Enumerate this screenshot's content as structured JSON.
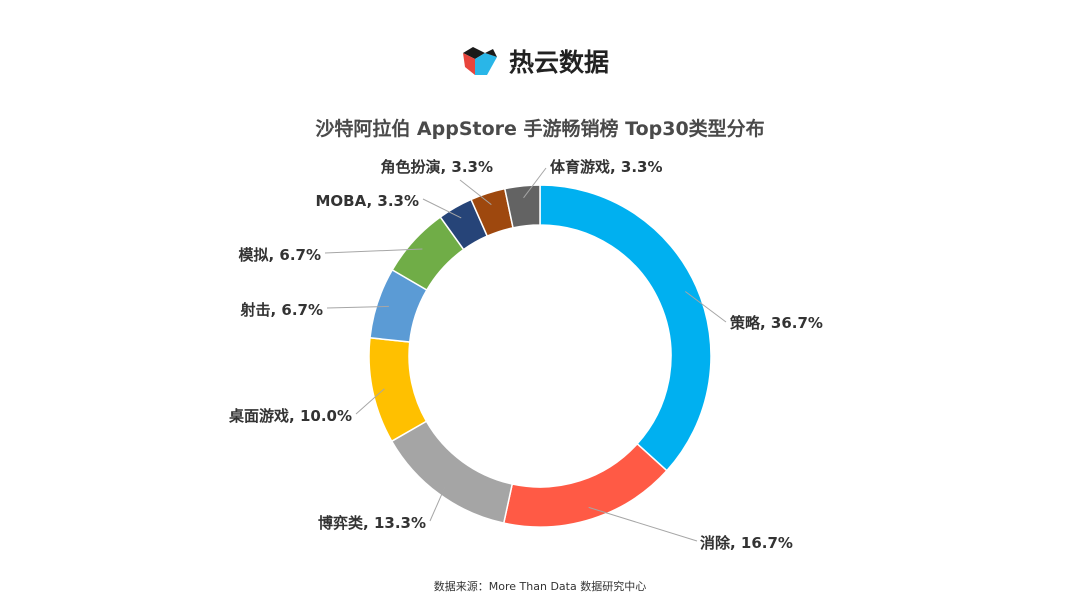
{
  "header": {
    "brand_name": "热云数据",
    "logo_icon": "cube-logo-icon"
  },
  "footer": {
    "source": "数据来源：More Than Data 数据研究中心"
  },
  "chart_data": {
    "type": "pie",
    "donut": true,
    "title": "沙特阿拉伯 AppStore 手游畅销榜 Top30类型分布",
    "legend": "none",
    "slices": [
      {
        "label": "策略",
        "value": 36.7,
        "display": "策略, 36.7%",
        "color": "#00B0F0"
      },
      {
        "label": "消除",
        "value": 16.7,
        "display": "消除, 16.7%",
        "color": "#FF5A45"
      },
      {
        "label": "博弈类",
        "value": 13.3,
        "display": "博弈类, 13.3%",
        "color": "#A5A5A5"
      },
      {
        "label": "桌面游戏",
        "value": 10.0,
        "display": "桌面游戏, 10.0%",
        "color": "#FFC000"
      },
      {
        "label": "射击",
        "value": 6.7,
        "display": "射击, 6.7%",
        "color": "#5B9BD5"
      },
      {
        "label": "模拟",
        "value": 6.7,
        "display": "模拟, 6.7%",
        "color": "#70AD47"
      },
      {
        "label": "MOBA",
        "value": 3.3,
        "display": "MOBA, 3.3%",
        "color": "#264478"
      },
      {
        "label": "角色扮演",
        "value": 3.3,
        "display": "角色扮演, 3.3%",
        "color": "#9E480E"
      },
      {
        "label": "体育游戏",
        "value": 3.3,
        "display": "体育游戏, 3.3%",
        "color": "#636363"
      }
    ]
  }
}
